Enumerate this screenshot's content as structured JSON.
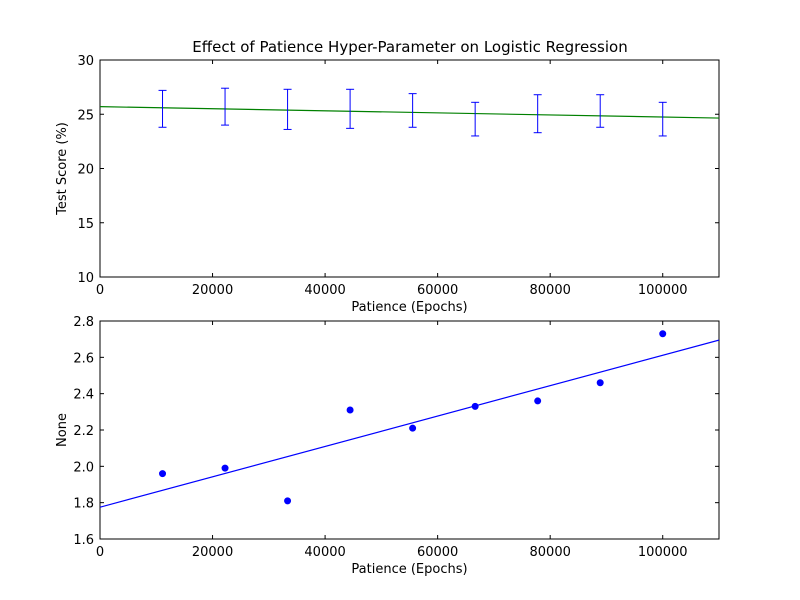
{
  "figure": {
    "title": "Effect of Patience Hyper-Parameter on Logistic Regression"
  },
  "chart_data": [
    {
      "type": "line",
      "title": "Effect of Patience Hyper-Parameter on Logistic Regression",
      "xlabel": "Patience (Epochs)",
      "ylabel": "Test Score (%)",
      "xlim": [
        0,
        110000
      ],
      "ylim": [
        10,
        30
      ],
      "xticks": [
        0,
        20000,
        40000,
        60000,
        80000,
        100000
      ],
      "yticks": [
        10,
        15,
        20,
        25,
        30
      ],
      "grid": false,
      "errorbars": {
        "color": "#0000ff",
        "x": [
          11111,
          22222,
          33333,
          44444,
          55556,
          66667,
          77778,
          88889,
          100000
        ],
        "y": [
          25.5,
          25.7,
          25.5,
          25.5,
          25.35,
          24.6,
          25.05,
          25.3,
          24.6
        ],
        "lower": [
          23.8,
          24.0,
          23.6,
          23.7,
          23.8,
          23.0,
          23.3,
          23.8,
          23.0
        ],
        "upper": [
          27.2,
          27.4,
          27.3,
          27.3,
          26.9,
          26.1,
          26.8,
          26.8,
          26.1
        ]
      },
      "trend_line": {
        "color": "#008000",
        "x": [
          0,
          110000
        ],
        "y": [
          25.7,
          24.65
        ]
      }
    },
    {
      "type": "scatter",
      "xlabel": "Patience (Epochs)",
      "ylabel": "None",
      "xlim": [
        0,
        110000
      ],
      "ylim": [
        1.6,
        2.8
      ],
      "xticks": [
        0,
        20000,
        40000,
        60000,
        80000,
        100000
      ],
      "yticks": [
        1.6,
        1.8,
        2.0,
        2.2,
        2.4,
        2.6,
        2.8
      ],
      "grid": false,
      "points": {
        "color": "#0000ff",
        "x": [
          11111,
          22222,
          33333,
          44444,
          55556,
          66667,
          77778,
          88889,
          100000
        ],
        "y": [
          1.96,
          1.99,
          1.81,
          2.31,
          2.21,
          2.33,
          2.36,
          2.46,
          2.73
        ]
      },
      "trend_line": {
        "color": "#0000ff",
        "x": [
          0,
          110000
        ],
        "y": [
          1.775,
          2.695
        ]
      }
    }
  ]
}
